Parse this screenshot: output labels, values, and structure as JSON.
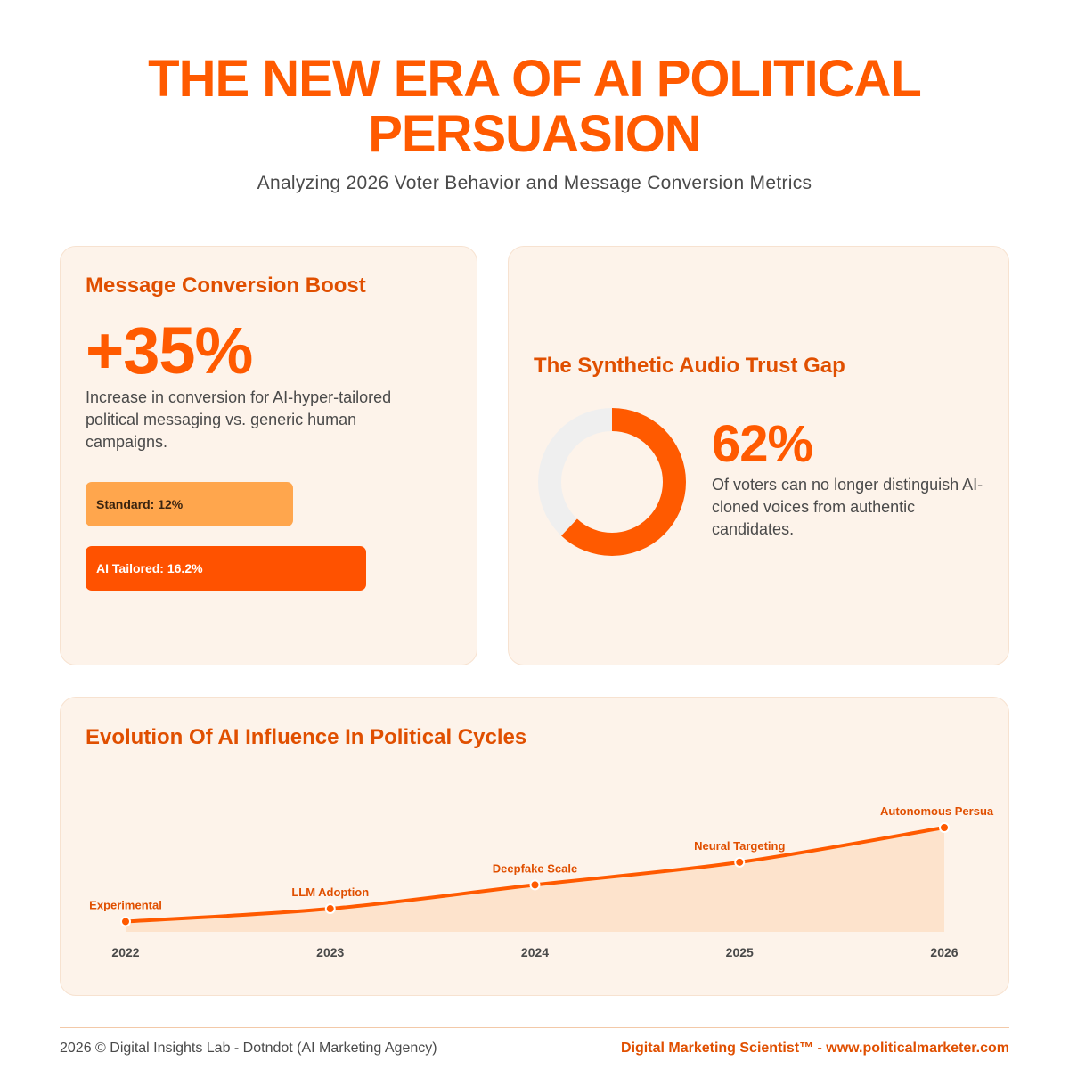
{
  "header": {
    "title_line1": "THE NEW ERA OF AI POLITICAL",
    "title_line2": "PERSUASION",
    "subtitle": "Analyzing 2026 Voter Behavior and Message Conversion Metrics"
  },
  "conversion": {
    "heading": "Message Conversion Boost",
    "stat": "+35%",
    "description": "Increase in conversion for AI-hyper-tailored political messaging vs. generic human campaigns.",
    "bars": [
      {
        "label": "Standard: 12%",
        "value": 12
      },
      {
        "label": "AI Tailored: 16.2%",
        "value": 16.2
      }
    ]
  },
  "trust_gap": {
    "heading": "The Synthetic Audio Trust Gap",
    "stat": "62%",
    "value": 62,
    "description": "Of voters can no longer distinguish AI-cloned voices from authentic candidates."
  },
  "timeline": {
    "heading": "Evolution Of AI Influence In Political Cycles",
    "points": [
      {
        "year": "2022",
        "label": "Experimental",
        "value": 5
      },
      {
        "year": "2023",
        "label": "LLM Adoption",
        "value": 18
      },
      {
        "year": "2024",
        "label": "Deepfake Scale",
        "value": 42
      },
      {
        "year": "2025",
        "label": "Neural Targeting",
        "value": 65
      },
      {
        "year": "2026",
        "label": "Autonomous Persua",
        "value": 100
      }
    ]
  },
  "footer": {
    "left": "2026 © Digital Insights Lab - Dotndot (AI Marketing Agency)",
    "right": "Digital Marketing Scientist™ - www.politicalmarketer.com"
  },
  "colors": {
    "accent": "#ff5a00",
    "accent_dark": "#e04f00",
    "standard_bar": "#ffa64d",
    "card_bg": "#fdf3ea",
    "donut_track": "#efefef"
  }
}
